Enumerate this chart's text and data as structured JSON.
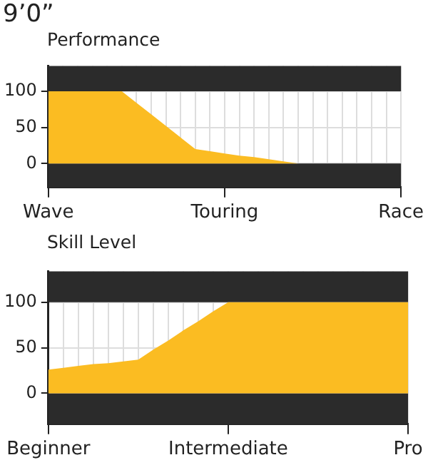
{
  "chart_data": [
    {
      "type": "area",
      "title": "9’0”",
      "subtitle": "Performance",
      "categories": [
        "Wave",
        null,
        null,
        null,
        null,
        null,
        null,
        null,
        null,
        null,
        null,
        null,
        "Touring",
        null,
        null,
        null,
        null,
        null,
        null,
        null,
        null,
        null,
        null,
        null,
        "Race"
      ],
      "values": [
        100,
        100,
        100,
        100,
        100,
        100,
        84,
        68,
        52,
        36,
        20,
        17,
        14,
        11,
        9,
        6,
        3,
        0,
        0,
        0,
        0,
        0,
        0,
        0,
        0
      ],
      "color": "#fbbc22",
      "ylim": [
        -33,
        135
      ],
      "yticks": [
        0,
        50,
        100
      ],
      "grid": true,
      "bands": [
        {
          "axis": "y",
          "from": 100,
          "to": 135,
          "color": "#2b2b2b"
        },
        {
          "axis": "y",
          "from": -33,
          "to": 0,
          "color": "#2b2b2b"
        }
      ]
    },
    {
      "type": "area",
      "title": "Skill Level",
      "categories": [
        "Beginner",
        null,
        null,
        null,
        null,
        null,
        null,
        null,
        null,
        null,
        null,
        null,
        "Intermediate",
        null,
        null,
        null,
        null,
        null,
        null,
        null,
        null,
        null,
        null,
        null,
        "Pro"
      ],
      "values": [
        26,
        28,
        30,
        32,
        33,
        35,
        37,
        48,
        58,
        69,
        79,
        90,
        100,
        100,
        100,
        100,
        100,
        100,
        100,
        100,
        100,
        100,
        100,
        100,
        100
      ],
      "color": "#fbbc22",
      "ylim": [
        -34,
        134
      ],
      "yticks": [
        0,
        50,
        100
      ],
      "grid": true,
      "bands": [
        {
          "axis": "y",
          "from": 100,
          "to": 134,
          "color": "#2b2b2b"
        },
        {
          "axis": "y",
          "from": -34,
          "to": 0,
          "color": "#2b2b2b"
        }
      ]
    }
  ]
}
